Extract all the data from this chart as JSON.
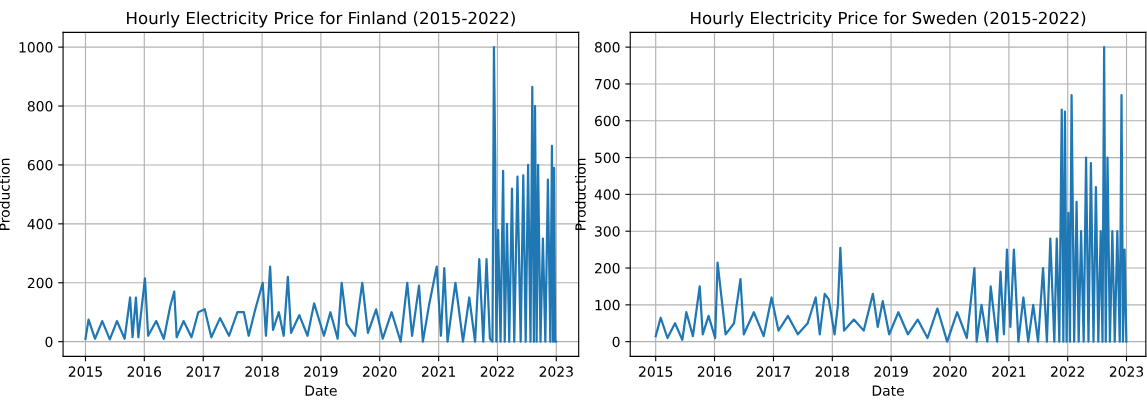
{
  "chart_data": [
    {
      "type": "line",
      "title": "Hourly Electricity Price for Finland (2015-2022)",
      "xlabel": "Date",
      "ylabel": "Production",
      "grid": true,
      "xlim": [
        "2014-08-15",
        "2023-05-20"
      ],
      "ylim": [
        -50,
        1050
      ],
      "xticks": [
        {
          "value": "2015-01-01",
          "label": "2015"
        },
        {
          "value": "2016-01-01",
          "label": "2016"
        },
        {
          "value": "2017-01-01",
          "label": "2017"
        },
        {
          "value": "2018-01-01",
          "label": "2018"
        },
        {
          "value": "2019-01-01",
          "label": "2019"
        },
        {
          "value": "2020-01-01",
          "label": "2020"
        },
        {
          "value": "2021-01-01",
          "label": "2021"
        },
        {
          "value": "2022-01-01",
          "label": "2022"
        },
        {
          "value": "2023-01-01",
          "label": "2023"
        }
      ],
      "yticks": [
        0,
        200,
        400,
        600,
        800,
        1000
      ],
      "series": [
        {
          "color": "#1f77b4",
          "x": [
            "2015-01-01",
            "2015-01-20",
            "2015-03-01",
            "2015-04-15",
            "2015-06-01",
            "2015-07-15",
            "2015-09-01",
            "2015-10-05",
            "2015-10-20",
            "2015-11-10",
            "2015-11-25",
            "2016-01-05",
            "2016-01-25",
            "2016-03-15",
            "2016-05-01",
            "2016-06-10",
            "2016-07-05",
            "2016-07-20",
            "2016-09-01",
            "2016-10-20",
            "2016-12-01",
            "2017-01-10",
            "2017-02-20",
            "2017-04-15",
            "2017-06-10",
            "2017-08-01",
            "2017-09-10",
            "2017-10-10",
            "2017-11-20",
            "2018-01-05",
            "2018-01-25",
            "2018-02-20",
            "2018-03-10",
            "2018-04-15",
            "2018-05-15",
            "2018-06-10",
            "2018-06-30",
            "2018-08-20",
            "2018-10-10",
            "2018-11-20",
            "2019-01-20",
            "2019-03-01",
            "2019-04-15",
            "2019-05-10",
            "2019-06-10",
            "2019-08-01",
            "2019-09-15",
            "2019-10-20",
            "2019-12-10",
            "2020-01-20",
            "2020-03-15",
            "2020-05-10",
            "2020-06-20",
            "2020-07-20",
            "2020-09-01",
            "2020-09-25",
            "2020-11-01",
            "2020-12-20",
            "2021-01-15",
            "2021-02-05",
            "2021-02-25",
            "2021-04-15",
            "2021-06-01",
            "2021-07-10",
            "2021-08-15",
            "2021-09-10",
            "2021-10-05",
            "2021-10-25",
            "2021-11-15",
            "2021-12-01",
            "2021-12-10",
            "2021-12-18",
            "2021-12-25",
            "2022-01-05",
            "2022-01-20",
            "2022-02-05",
            "2022-02-15",
            "2022-03-01",
            "2022-03-15",
            "2022-04-01",
            "2022-04-15",
            "2022-05-05",
            "2022-05-25",
            "2022-06-10",
            "2022-06-25",
            "2022-07-10",
            "2022-07-25",
            "2022-08-05",
            "2022-08-15",
            "2022-08-22",
            "2022-09-01",
            "2022-09-10",
            "2022-09-25",
            "2022-10-10",
            "2022-10-25",
            "2022-11-10",
            "2022-11-25",
            "2022-12-05",
            "2022-12-12",
            "2022-12-18",
            "2022-12-25",
            "2022-12-31"
          ],
          "values": [
            10,
            75,
            10,
            70,
            8,
            70,
            10,
            150,
            15,
            150,
            15,
            215,
            20,
            70,
            10,
            120,
            170,
            15,
            70,
            15,
            100,
            110,
            15,
            80,
            20,
            100,
            100,
            20,
            110,
            200,
            20,
            255,
            40,
            100,
            20,
            220,
            30,
            90,
            20,
            130,
            20,
            100,
            10,
            200,
            60,
            20,
            200,
            30,
            110,
            10,
            100,
            0,
            200,
            20,
            190,
            0,
            120,
            255,
            20,
            250,
            0,
            200,
            0,
            150,
            0,
            280,
            0,
            280,
            10,
            0,
            1000,
            620,
            0,
            380,
            0,
            580,
            0,
            400,
            0,
            520,
            0,
            560,
            0,
            565,
            0,
            600,
            0,
            865,
            0,
            800,
            0,
            600,
            0,
            350,
            0,
            550,
            0,
            665,
            0,
            590,
            0,
            0
          ]
        }
      ]
    },
    {
      "type": "line",
      "title": "Hourly Electricity Price for Sweden (2015-2022)",
      "xlabel": "Date",
      "ylabel": "Production",
      "grid": true,
      "xlim": [
        "2014-07-27",
        "2023-05-01"
      ],
      "ylim": [
        -40,
        840
      ],
      "xticks": [
        {
          "value": "2015-01-01",
          "label": "2015"
        },
        {
          "value": "2016-01-01",
          "label": "2016"
        },
        {
          "value": "2017-01-01",
          "label": "2017"
        },
        {
          "value": "2018-01-01",
          "label": "2018"
        },
        {
          "value": "2019-01-01",
          "label": "2019"
        },
        {
          "value": "2020-01-01",
          "label": "2020"
        },
        {
          "value": "2021-01-01",
          "label": "2021"
        },
        {
          "value": "2022-01-01",
          "label": "2022"
        },
        {
          "value": "2023-01-01",
          "label": "2023"
        }
      ],
      "yticks": [
        0,
        100,
        200,
        300,
        400,
        500,
        600,
        700,
        800
      ],
      "series": [
        {
          "color": "#1f77b4",
          "x": [
            "2015-01-01",
            "2015-02-01",
            "2015-03-15",
            "2015-05-01",
            "2015-06-15",
            "2015-07-10",
            "2015-08-20",
            "2015-10-01",
            "2015-10-20",
            "2015-11-25",
            "2016-01-05",
            "2016-01-20",
            "2016-03-10",
            "2016-05-01",
            "2016-06-10",
            "2016-07-01",
            "2016-09-01",
            "2016-11-01",
            "2016-12-20",
            "2017-02-01",
            "2017-04-01",
            "2017-06-01",
            "2017-08-01",
            "2017-09-20",
            "2017-10-15",
            "2017-11-15",
            "2017-12-10",
            "2018-01-15",
            "2018-02-05",
            "2018-02-20",
            "2018-03-15",
            "2018-05-15",
            "2018-07-15",
            "2018-09-10",
            "2018-10-10",
            "2018-11-10",
            "2018-12-20",
            "2019-02-15",
            "2019-04-15",
            "2019-06-15",
            "2019-08-15",
            "2019-10-15",
            "2019-12-15",
            "2020-02-15",
            "2020-04-15",
            "2020-06-01",
            "2020-06-15",
            "2020-07-15",
            "2020-08-20",
            "2020-09-10",
            "2020-10-20",
            "2020-11-10",
            "2020-12-01",
            "2020-12-20",
            "2021-01-10",
            "2021-02-01",
            "2021-03-01",
            "2021-04-01",
            "2021-05-01",
            "2021-06-01",
            "2021-07-01",
            "2021-08-01",
            "2021-08-25",
            "2021-09-15",
            "2021-10-10",
            "2021-10-25",
            "2021-11-10",
            "2021-11-25",
            "2021-12-05",
            "2021-12-15",
            "2021-12-25",
            "2022-01-05",
            "2022-01-15",
            "2022-01-25",
            "2022-02-10",
            "2022-02-25",
            "2022-03-10",
            "2022-03-25",
            "2022-04-10",
            "2022-04-25",
            "2022-05-10",
            "2022-05-25",
            "2022-06-10",
            "2022-06-25",
            "2022-07-10",
            "2022-07-25",
            "2022-08-05",
            "2022-08-15",
            "2022-08-25",
            "2022-09-05",
            "2022-09-20",
            "2022-10-05",
            "2022-10-20",
            "2022-11-05",
            "2022-11-20",
            "2022-12-01",
            "2022-12-10",
            "2022-12-20",
            "2022-12-31"
          ],
          "values": [
            15,
            65,
            10,
            50,
            5,
            80,
            15,
            150,
            20,
            70,
            10,
            215,
            20,
            50,
            170,
            20,
            80,
            15,
            120,
            30,
            70,
            20,
            50,
            120,
            20,
            130,
            115,
            20,
            100,
            255,
            30,
            60,
            30,
            130,
            40,
            110,
            20,
            80,
            20,
            60,
            10,
            90,
            0,
            80,
            10,
            200,
            0,
            100,
            0,
            150,
            0,
            190,
            20,
            250,
            40,
            250,
            0,
            120,
            0,
            100,
            0,
            200,
            0,
            280,
            0,
            280,
            0,
            630,
            0,
            625,
            0,
            350,
            0,
            670,
            0,
            380,
            0,
            300,
            0,
            500,
            0,
            485,
            0,
            420,
            0,
            300,
            0,
            800,
            0,
            500,
            0,
            300,
            0,
            300,
            0,
            670,
            0,
            250,
            0
          ]
        }
      ]
    }
  ]
}
